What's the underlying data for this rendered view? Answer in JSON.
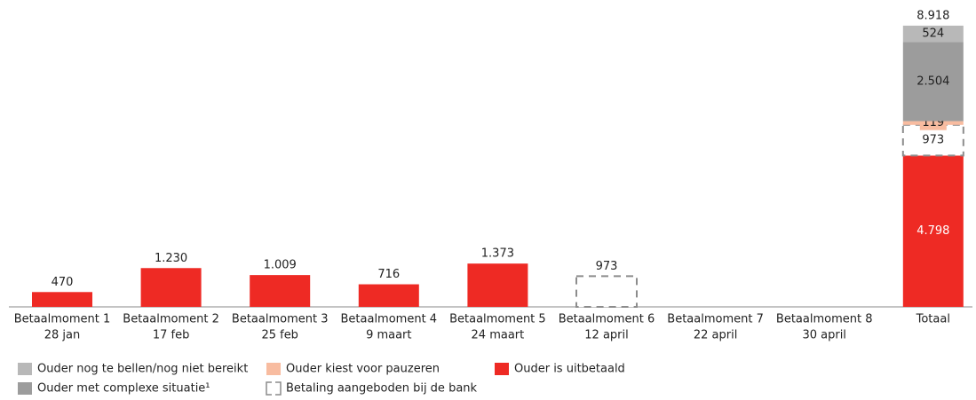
{
  "chart_data": {
    "type": "stacked_bar",
    "categories": [
      [
        "Betaalmoment 1",
        "28 jan"
      ],
      [
        "Betaalmoment 2",
        "17 feb"
      ],
      [
        "Betaalmoment 3",
        "25 feb"
      ],
      [
        "Betaalmoment 4",
        "9 maart"
      ],
      [
        "Betaalmoment 5",
        "24 maart"
      ],
      [
        "Betaalmoment 6",
        "12 april"
      ],
      [
        "Betaalmoment 7",
        "22 april"
      ],
      [
        "Betaalmoment 8",
        "30 april"
      ],
      [
        "Totaal"
      ]
    ],
    "series": [
      {
        "name": "Ouder is uitbetaald",
        "color": "#ee2a24",
        "values": [
          470,
          1230,
          1009,
          716,
          1373,
          null,
          null,
          null,
          4798
        ],
        "value_labels": [
          "470",
          "1.230",
          "1.009",
          "716",
          "1.373",
          null,
          null,
          null,
          "4.798"
        ]
      },
      {
        "name": "Betaling aangeboden bij de bank",
        "color": "#8c8c8c",
        "dashed": true,
        "values": [
          null,
          null,
          null,
          null,
          null,
          973,
          null,
          null,
          973
        ],
        "value_labels": [
          null,
          null,
          null,
          null,
          null,
          "973",
          null,
          null,
          "973"
        ]
      },
      {
        "name": "Ouder kiest voor pauzeren",
        "color": "#f8bca0",
        "values": [
          null,
          null,
          null,
          null,
          null,
          null,
          null,
          null,
          119
        ],
        "value_labels": [
          null,
          null,
          null,
          null,
          null,
          null,
          null,
          null,
          "119"
        ]
      },
      {
        "name": "Ouder met complexe situatie¹",
        "color": "#9c9c9c",
        "values": [
          null,
          null,
          null,
          null,
          null,
          null,
          null,
          null,
          2504
        ],
        "value_labels": [
          null,
          null,
          null,
          null,
          null,
          null,
          null,
          null,
          "2.504"
        ]
      },
      {
        "name": "Ouder nog te bellen/nog niet bereikt",
        "color": "#b8b8b8",
        "values": [
          null,
          null,
          null,
          null,
          null,
          null,
          null,
          null,
          524
        ],
        "value_labels": [
          null,
          null,
          null,
          null,
          null,
          null,
          null,
          null,
          "524"
        ]
      }
    ],
    "total": {
      "value": 8918,
      "label": "8.918"
    },
    "ylim": [
      0,
      9000
    ]
  }
}
